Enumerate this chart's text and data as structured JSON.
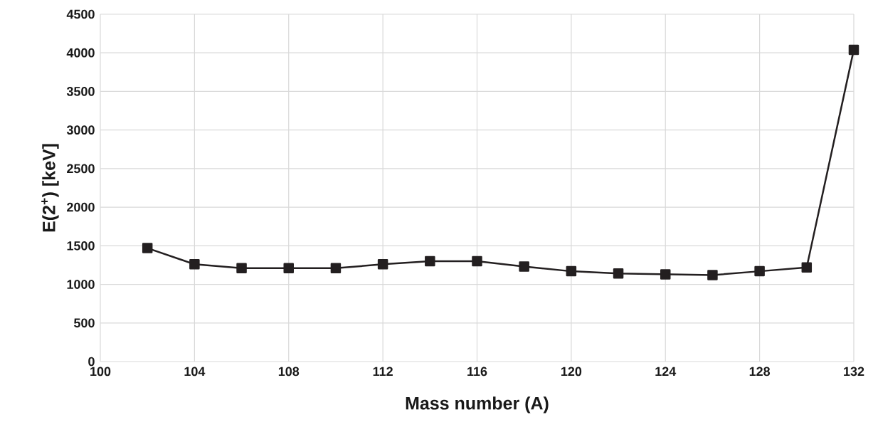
{
  "chart_data": {
    "type": "line",
    "xlabel": "Mass number (A)",
    "ylabel": "E(2$^{+}$) [keV]",
    "x": [
      102,
      104,
      106,
      108,
      110,
      112,
      114,
      116,
      118,
      120,
      122,
      124,
      126,
      128,
      130,
      132
    ],
    "series": [
      {
        "color": "#231f20",
        "values": [
          1470,
          1260,
          1210,
          1210,
          1210,
          1260,
          1300,
          1300,
          1230,
          1170,
          1140,
          1130,
          1120,
          1170,
          1220,
          4040
        ]
      }
    ],
    "xlim": [
      100,
      132
    ],
    "xticks": [
      100,
      104,
      108,
      112,
      116,
      120,
      124,
      128,
      132
    ],
    "ylim": [
      0,
      4500
    ],
    "yticks": [
      0,
      500,
      1000,
      1500,
      2000,
      2500,
      3000,
      3500,
      4000,
      4500
    ],
    "grid": true,
    "marker": "square",
    "line_style": "solid"
  }
}
